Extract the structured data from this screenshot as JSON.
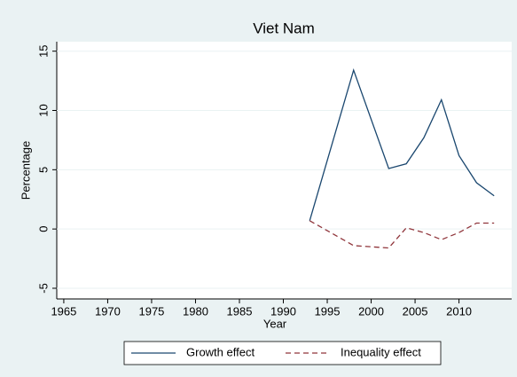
{
  "chart_data": {
    "type": "line",
    "title": "Viet Nam",
    "xlabel": "Year",
    "ylabel": "Percentage",
    "x": [
      1993,
      1998,
      2002,
      2004,
      2006,
      2008,
      2010,
      2012,
      2014
    ],
    "series": [
      {
        "name": "Growth effect",
        "color": "#1a476f",
        "dash": "solid",
        "values": [
          0.7,
          13.4,
          5.1,
          5.5,
          7.7,
          10.9,
          6.2,
          3.9,
          2.8
        ]
      },
      {
        "name": "Inequality effect",
        "color": "#90353b",
        "dash": "dashed",
        "values": [
          0.7,
          -1.4,
          -1.6,
          0.1,
          -0.3,
          -0.9,
          -0.3,
          0.5,
          0.5
        ]
      }
    ],
    "xlim": [
      1964.2,
      2016
    ],
    "xticks": [
      1965,
      1970,
      1975,
      1980,
      1985,
      1990,
      1995,
      2000,
      2005,
      2010
    ],
    "ylim": [
      -5.9,
      15.8
    ],
    "yticks": [
      -5,
      0,
      5,
      10,
      15
    ],
    "grid": true,
    "legend": "bottom"
  }
}
